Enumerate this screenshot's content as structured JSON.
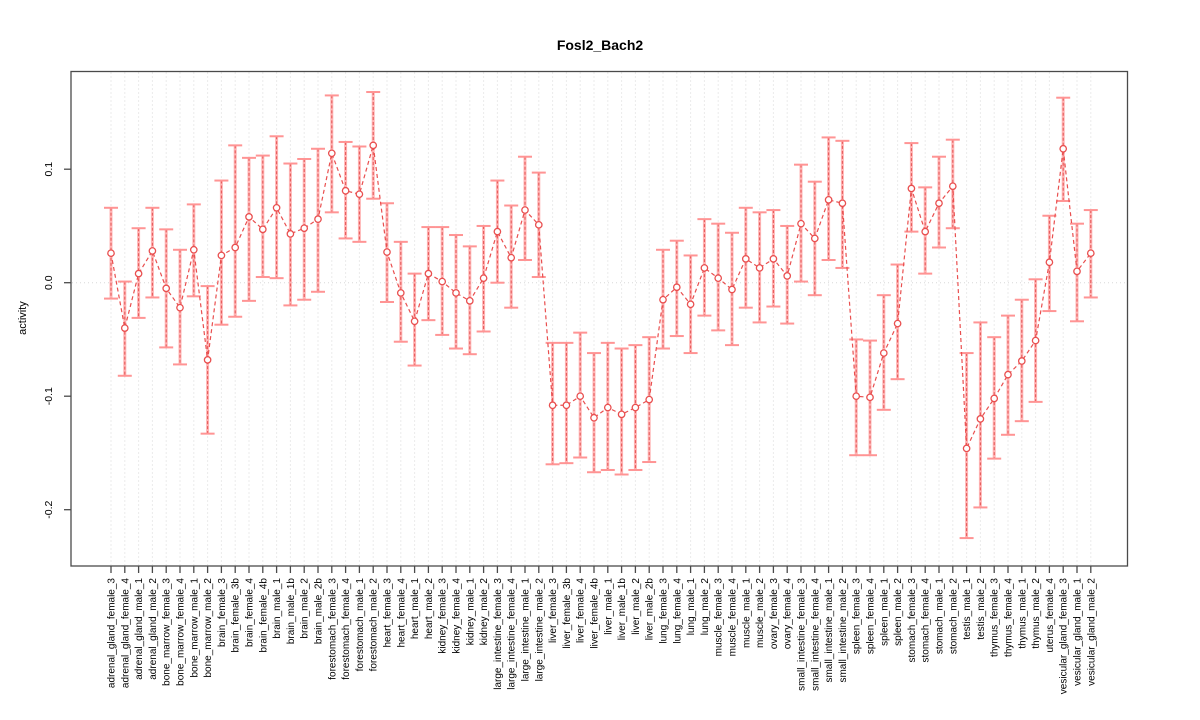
{
  "chart_data": {
    "type": "line",
    "subtype": "point-errorbar-series",
    "title": "Fosl2_Bach2",
    "xlabel": "",
    "ylabel": "activity",
    "legend": "none",
    "grid": "dotted vertical gridline per category; dotted horizontal line at y=0",
    "ylim": [
      -0.25,
      0.186
    ],
    "yticks": [
      0.1,
      0.0,
      -0.1,
      -0.2
    ],
    "ytick_labels": [
      "0.1",
      "0.0",
      "-0.1",
      "-0.2"
    ],
    "categories": [
      "adrenal_gland_female_3",
      "adrenal_gland_female_4",
      "adrenal_gland_male_1",
      "adrenal_gland_male_2",
      "bone_marrow_female_3",
      "bone_marrow_female_4",
      "bone_marrow_male_1",
      "bone_marrow_male_2",
      "brain_female_3",
      "brain_female_3b",
      "brain_female_4",
      "brain_female_4b",
      "brain_male_1",
      "brain_male_1b",
      "brain_male_2",
      "brain_male_2b",
      "forestomach_female_3",
      "forestomach_female_4",
      "forestomach_male_1",
      "forestomach_male_2",
      "heart_female_3",
      "heart_female_4",
      "heart_male_1",
      "heart_male_2",
      "kidney_female_3",
      "kidney_female_4",
      "kidney_male_1",
      "kidney_male_2",
      "large_intestine_female_3",
      "large_intestine_female_4",
      "large_intestine_male_1",
      "large_intestine_male_2",
      "liver_female_3",
      "liver_female_3b",
      "liver_female_4",
      "liver_female_4b",
      "liver_male_1",
      "liver_male_1b",
      "liver_male_2",
      "liver_male_2b",
      "lung_female_3",
      "lung_female_4",
      "lung_male_1",
      "lung_male_2",
      "muscle_female_3",
      "muscle_female_4",
      "muscle_male_1",
      "muscle_male_2",
      "ovary_female_3",
      "ovary_female_4",
      "small_intestine_female_3",
      "small_intestine_female_4",
      "small_intestine_male_1",
      "small_intestine_male_2",
      "spleen_female_3",
      "spleen_female_4",
      "spleen_male_1",
      "spleen_male_2",
      "stomach_female_3",
      "stomach_female_4",
      "stomach_male_1",
      "stomach_male_2",
      "testis_male_1",
      "testis_male_2",
      "thymus_female_3",
      "thymus_female_4",
      "thymus_male_1",
      "thymus_male_2",
      "uterus_female_4",
      "vesicular_gland_female_3",
      "vesicular_gland_male_1",
      "vesicular_gland_male_2"
    ],
    "values": [
      0.026,
      -0.04,
      0.008,
      0.028,
      -0.005,
      -0.022,
      0.029,
      -0.068,
      0.024,
      0.031,
      0.058,
      0.047,
      0.066,
      0.043,
      0.048,
      0.056,
      0.114,
      0.081,
      0.078,
      0.121,
      0.027,
      -0.009,
      -0.034,
      0.008,
      0.001,
      -0.009,
      -0.016,
      0.004,
      0.045,
      0.022,
      0.064,
      0.051,
      -0.108,
      -0.108,
      -0.1,
      -0.119,
      -0.11,
      -0.116,
      -0.11,
      -0.103,
      -0.015,
      -0.004,
      -0.019,
      0.013,
      0.004,
      -0.006,
      0.021,
      0.013,
      0.021,
      0.006,
      0.052,
      0.039,
      0.073,
      0.07,
      -0.1,
      -0.101,
      -0.062,
      -0.036,
      0.083,
      0.045,
      0.07,
      0.085,
      -0.146,
      -0.12,
      -0.102,
      -0.081,
      -0.069,
      -0.051,
      0.018,
      0.118,
      0.01,
      0.026
    ],
    "err_low": [
      -0.014,
      -0.082,
      -0.031,
      -0.013,
      -0.057,
      -0.072,
      -0.012,
      -0.133,
      -0.037,
      -0.03,
      -0.016,
      0.005,
      0.004,
      -0.02,
      -0.015,
      -0.008,
      0.062,
      0.039,
      0.036,
      0.074,
      -0.017,
      -0.052,
      -0.073,
      -0.033,
      -0.046,
      -0.058,
      -0.063,
      -0.043,
      0.0,
      -0.022,
      0.02,
      0.005,
      -0.16,
      -0.159,
      -0.154,
      -0.167,
      -0.165,
      -0.169,
      -0.165,
      -0.158,
      -0.058,
      -0.047,
      -0.062,
      -0.029,
      -0.042,
      -0.055,
      -0.022,
      -0.035,
      -0.021,
      -0.036,
      0.001,
      -0.011,
      0.02,
      0.013,
      -0.152,
      -0.152,
      -0.112,
      -0.085,
      0.045,
      0.008,
      0.031,
      0.048,
      -0.225,
      -0.198,
      -0.155,
      -0.134,
      -0.122,
      -0.105,
      -0.025,
      0.072,
      -0.034,
      -0.013
    ],
    "err_high": [
      0.066,
      0.001,
      0.048,
      0.066,
      0.047,
      0.029,
      0.069,
      -0.003,
      0.09,
      0.121,
      0.11,
      0.112,
      0.129,
      0.105,
      0.109,
      0.118,
      0.165,
      0.124,
      0.12,
      0.168,
      0.07,
      0.036,
      0.008,
      0.049,
      0.049,
      0.042,
      0.032,
      0.05,
      0.09,
      0.068,
      0.111,
      0.097,
      -0.053,
      -0.053,
      -0.044,
      -0.062,
      -0.053,
      -0.058,
      -0.055,
      -0.048,
      0.029,
      0.037,
      0.024,
      0.056,
      0.052,
      0.044,
      0.066,
      0.062,
      0.064,
      0.05,
      0.104,
      0.089,
      0.128,
      0.125,
      -0.05,
      -0.051,
      -0.011,
      0.016,
      0.123,
      0.084,
      0.111,
      0.126,
      -0.062,
      -0.035,
      -0.048,
      -0.029,
      -0.015,
      0.003,
      0.059,
      0.163,
      0.052,
      0.064
    ],
    "colors": {
      "series_red": "#e94f4f",
      "dashed_core_red": "#e04444",
      "errorbar_pink": "#ffb4b4",
      "cap_pink": "#ff9494",
      "gridline_gray": "#d8d8d8",
      "axis_gray": "#4a4a4a",
      "text_black": "#000000",
      "background": "#ffffff"
    }
  }
}
